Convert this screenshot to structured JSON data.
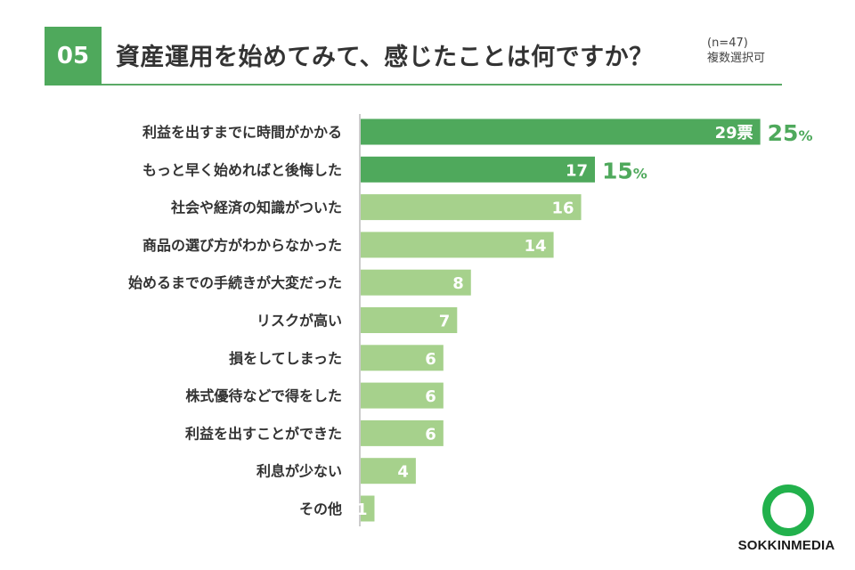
{
  "header": {
    "number": "05",
    "title": "資産運用を始めてみて、感じたことは何ですか？",
    "sample_note": "(n=47)",
    "multi_note": "複数選択可"
  },
  "chart_data": {
    "type": "bar",
    "orientation": "horizontal",
    "categories": [
      "利益を出すまでに時間がかかる",
      "もっと早く始めればと後悔した",
      "社会や経済の知識がついた",
      "商品の選び方がわからなかった",
      "始めるまでの手続きが大変だった",
      "リスクが高い",
      "損をしてしまった",
      "株式優待などで得をした",
      "利益を出すことができた",
      "利息が少ない",
      "その他"
    ],
    "values": [
      29,
      17,
      16,
      14,
      8,
      7,
      6,
      6,
      6,
      4,
      1
    ],
    "value_labels": [
      "29票",
      "17",
      "16",
      "14",
      "8",
      "7",
      "6",
      "6",
      "6",
      "4",
      "1"
    ],
    "percent_labels": [
      {
        "index": 0,
        "value": "25",
        "unit": "%"
      },
      {
        "index": 1,
        "value": "15",
        "unit": "%"
      }
    ],
    "colors": {
      "highlight": "#4fa95c",
      "normal": "#a6d18c",
      "percent_text": "#4fa95c",
      "axis": "#999999"
    },
    "highlight_count": 2,
    "xlim": [
      0,
      34
    ],
    "grid": false
  },
  "logo": {
    "text": "SOKKINMEDIA",
    "icon": "ring-icon"
  }
}
